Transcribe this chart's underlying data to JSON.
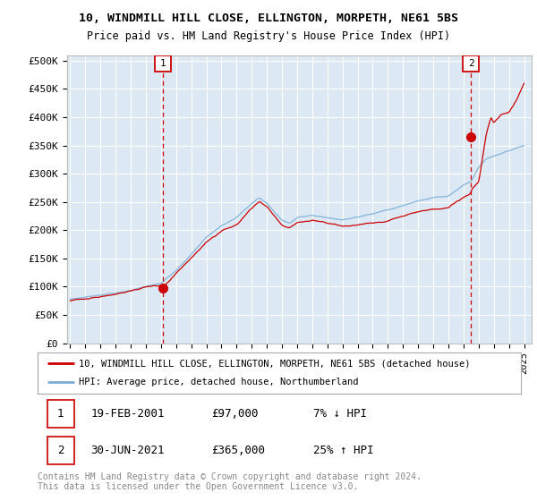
{
  "title1": "10, WINDMILL HILL CLOSE, ELLINGTON, MORPETH, NE61 5BS",
  "title2": "Price paid vs. HM Land Registry's House Price Index (HPI)",
  "ylabel_ticks": [
    "£0",
    "£50K",
    "£100K",
    "£150K",
    "£200K",
    "£250K",
    "£300K",
    "£350K",
    "£400K",
    "£450K",
    "£500K"
  ],
  "ytick_values": [
    0,
    50000,
    100000,
    150000,
    200000,
    250000,
    300000,
    350000,
    400000,
    450000,
    500000
  ],
  "ylim": [
    0,
    510000
  ],
  "xlim_start": 1994.8,
  "xlim_end": 2025.5,
  "background_color": "#dce9f5",
  "grid_color": "#ffffff",
  "red_line_color": "#cc0000",
  "blue_line_color": "#7aadd4",
  "transaction1_x": 2001.12,
  "transaction1_y": 97000,
  "transaction2_x": 2021.5,
  "transaction2_y": 365000,
  "legend_line1": "10, WINDMILL HILL CLOSE, ELLINGTON, MORPETH, NE61 5BS (detached house)",
  "legend_line2": "HPI: Average price, detached house, Northumberland",
  "table_row1": [
    "1",
    "19-FEB-2001",
    "£97,000",
    "7% ↓ HPI"
  ],
  "table_row2": [
    "2",
    "30-JUN-2021",
    "£365,000",
    "25% ↑ HPI"
  ],
  "footer": "Contains HM Land Registry data © Crown copyright and database right 2024.\nThis data is licensed under the Open Government Licence v3.0.",
  "xtick_years": [
    1995,
    1996,
    1997,
    1998,
    1999,
    2000,
    2001,
    2002,
    2003,
    2004,
    2005,
    2006,
    2007,
    2008,
    2009,
    2010,
    2011,
    2012,
    2013,
    2014,
    2015,
    2016,
    2017,
    2018,
    2019,
    2020,
    2021,
    2022,
    2023,
    2024,
    2025
  ]
}
